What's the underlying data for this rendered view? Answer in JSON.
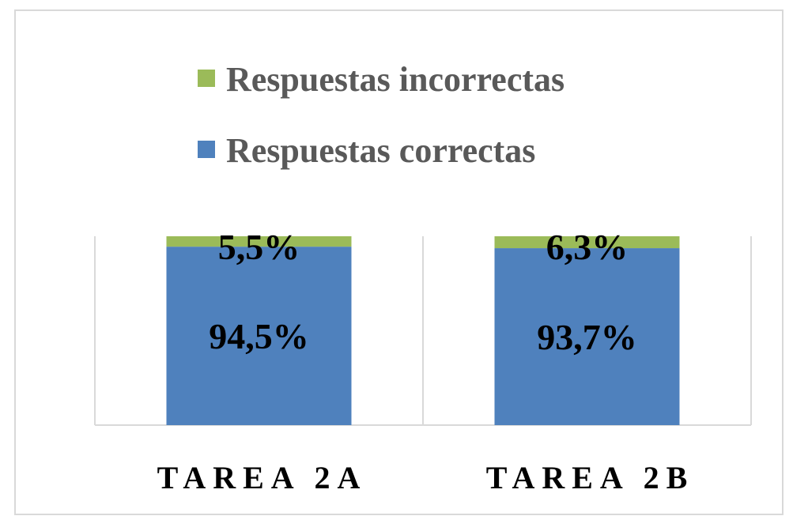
{
  "chart_data": {
    "type": "bar",
    "stacked": true,
    "percent_stacked": true,
    "categories": [
      "TAREA 2A",
      "TAREA 2B"
    ],
    "series": [
      {
        "name": "Respuestas correctas",
        "values": [
          94.5,
          93.7
        ],
        "labels": [
          "94,5%",
          "93,7%"
        ],
        "color": "#4f81bd"
      },
      {
        "name": "Respuestas incorrectas",
        "values": [
          5.5,
          6.3
        ],
        "labels": [
          "5,5%",
          "6,3%"
        ],
        "color": "#9bbb59"
      }
    ],
    "legend_order": [
      1,
      0
    ],
    "legend_position": "top",
    "ylim": [
      0,
      100
    ],
    "grid": false,
    "title": "",
    "xlabel": "",
    "ylabel": ""
  }
}
